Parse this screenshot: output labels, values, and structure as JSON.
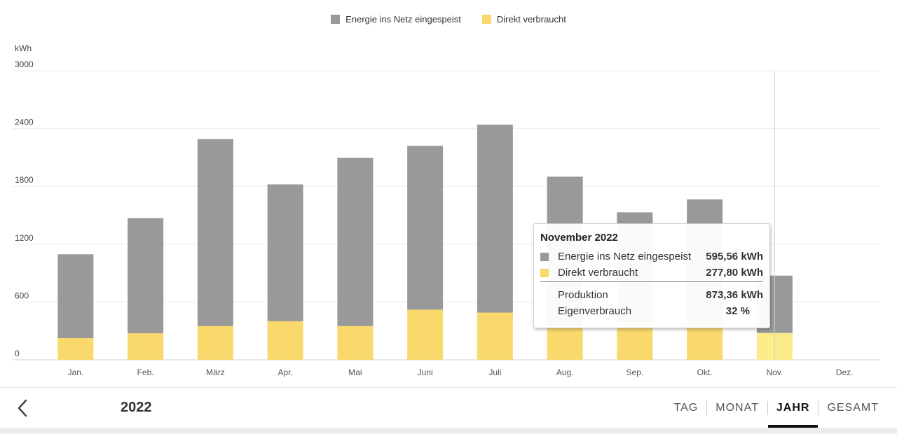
{
  "chart_data": {
    "type": "bar",
    "stacked": true,
    "ylabel": "kWh",
    "ylim": [
      0,
      3000
    ],
    "yticks": [
      0,
      600,
      1200,
      1800,
      2400,
      3000
    ],
    "grid": true,
    "legend_position": "top-center",
    "categories": [
      "Jan.",
      "Feb.",
      "März",
      "Apr.",
      "Mai",
      "Juni",
      "Juli",
      "Aug.",
      "Sep.",
      "Okt.",
      "Nov.",
      "Dez."
    ],
    "series": [
      {
        "name": "Direkt verbraucht",
        "color": "#f9d96b",
        "values": [
          225,
          275,
          350,
          400,
          350,
          520,
          490,
          350,
          390,
          380,
          277.8,
          0
        ]
      },
      {
        "name": "Energie ins Netz eingespeist",
        "color": "#999999",
        "values": [
          870,
          1195,
          1940,
          1420,
          1745,
          1700,
          1950,
          1550,
          1140,
          1285,
          595.56,
          0
        ]
      }
    ],
    "highlight_index": 10,
    "highlight_direct_color": "#fcec8a"
  },
  "tooltip": {
    "title": "November 2022",
    "rows": [
      {
        "label": "Energie ins Netz eingespeist",
        "value": "595,56",
        "unit": "kWh"
      },
      {
        "label": "Direkt verbraucht",
        "value": "277,80",
        "unit": "kWh"
      }
    ],
    "summary": [
      {
        "label": "Produktion",
        "value": "873,36",
        "unit": "kWh"
      },
      {
        "label": "Eigenverbrauch",
        "value": "32",
        "unit": "%"
      }
    ]
  },
  "footer": {
    "year": "2022",
    "back_icon": "chevron-left-icon",
    "tabs": [
      {
        "label": "TAG",
        "active": false
      },
      {
        "label": "MONAT",
        "active": false
      },
      {
        "label": "JAHR",
        "active": true
      },
      {
        "label": "GESAMT",
        "active": false
      }
    ]
  }
}
